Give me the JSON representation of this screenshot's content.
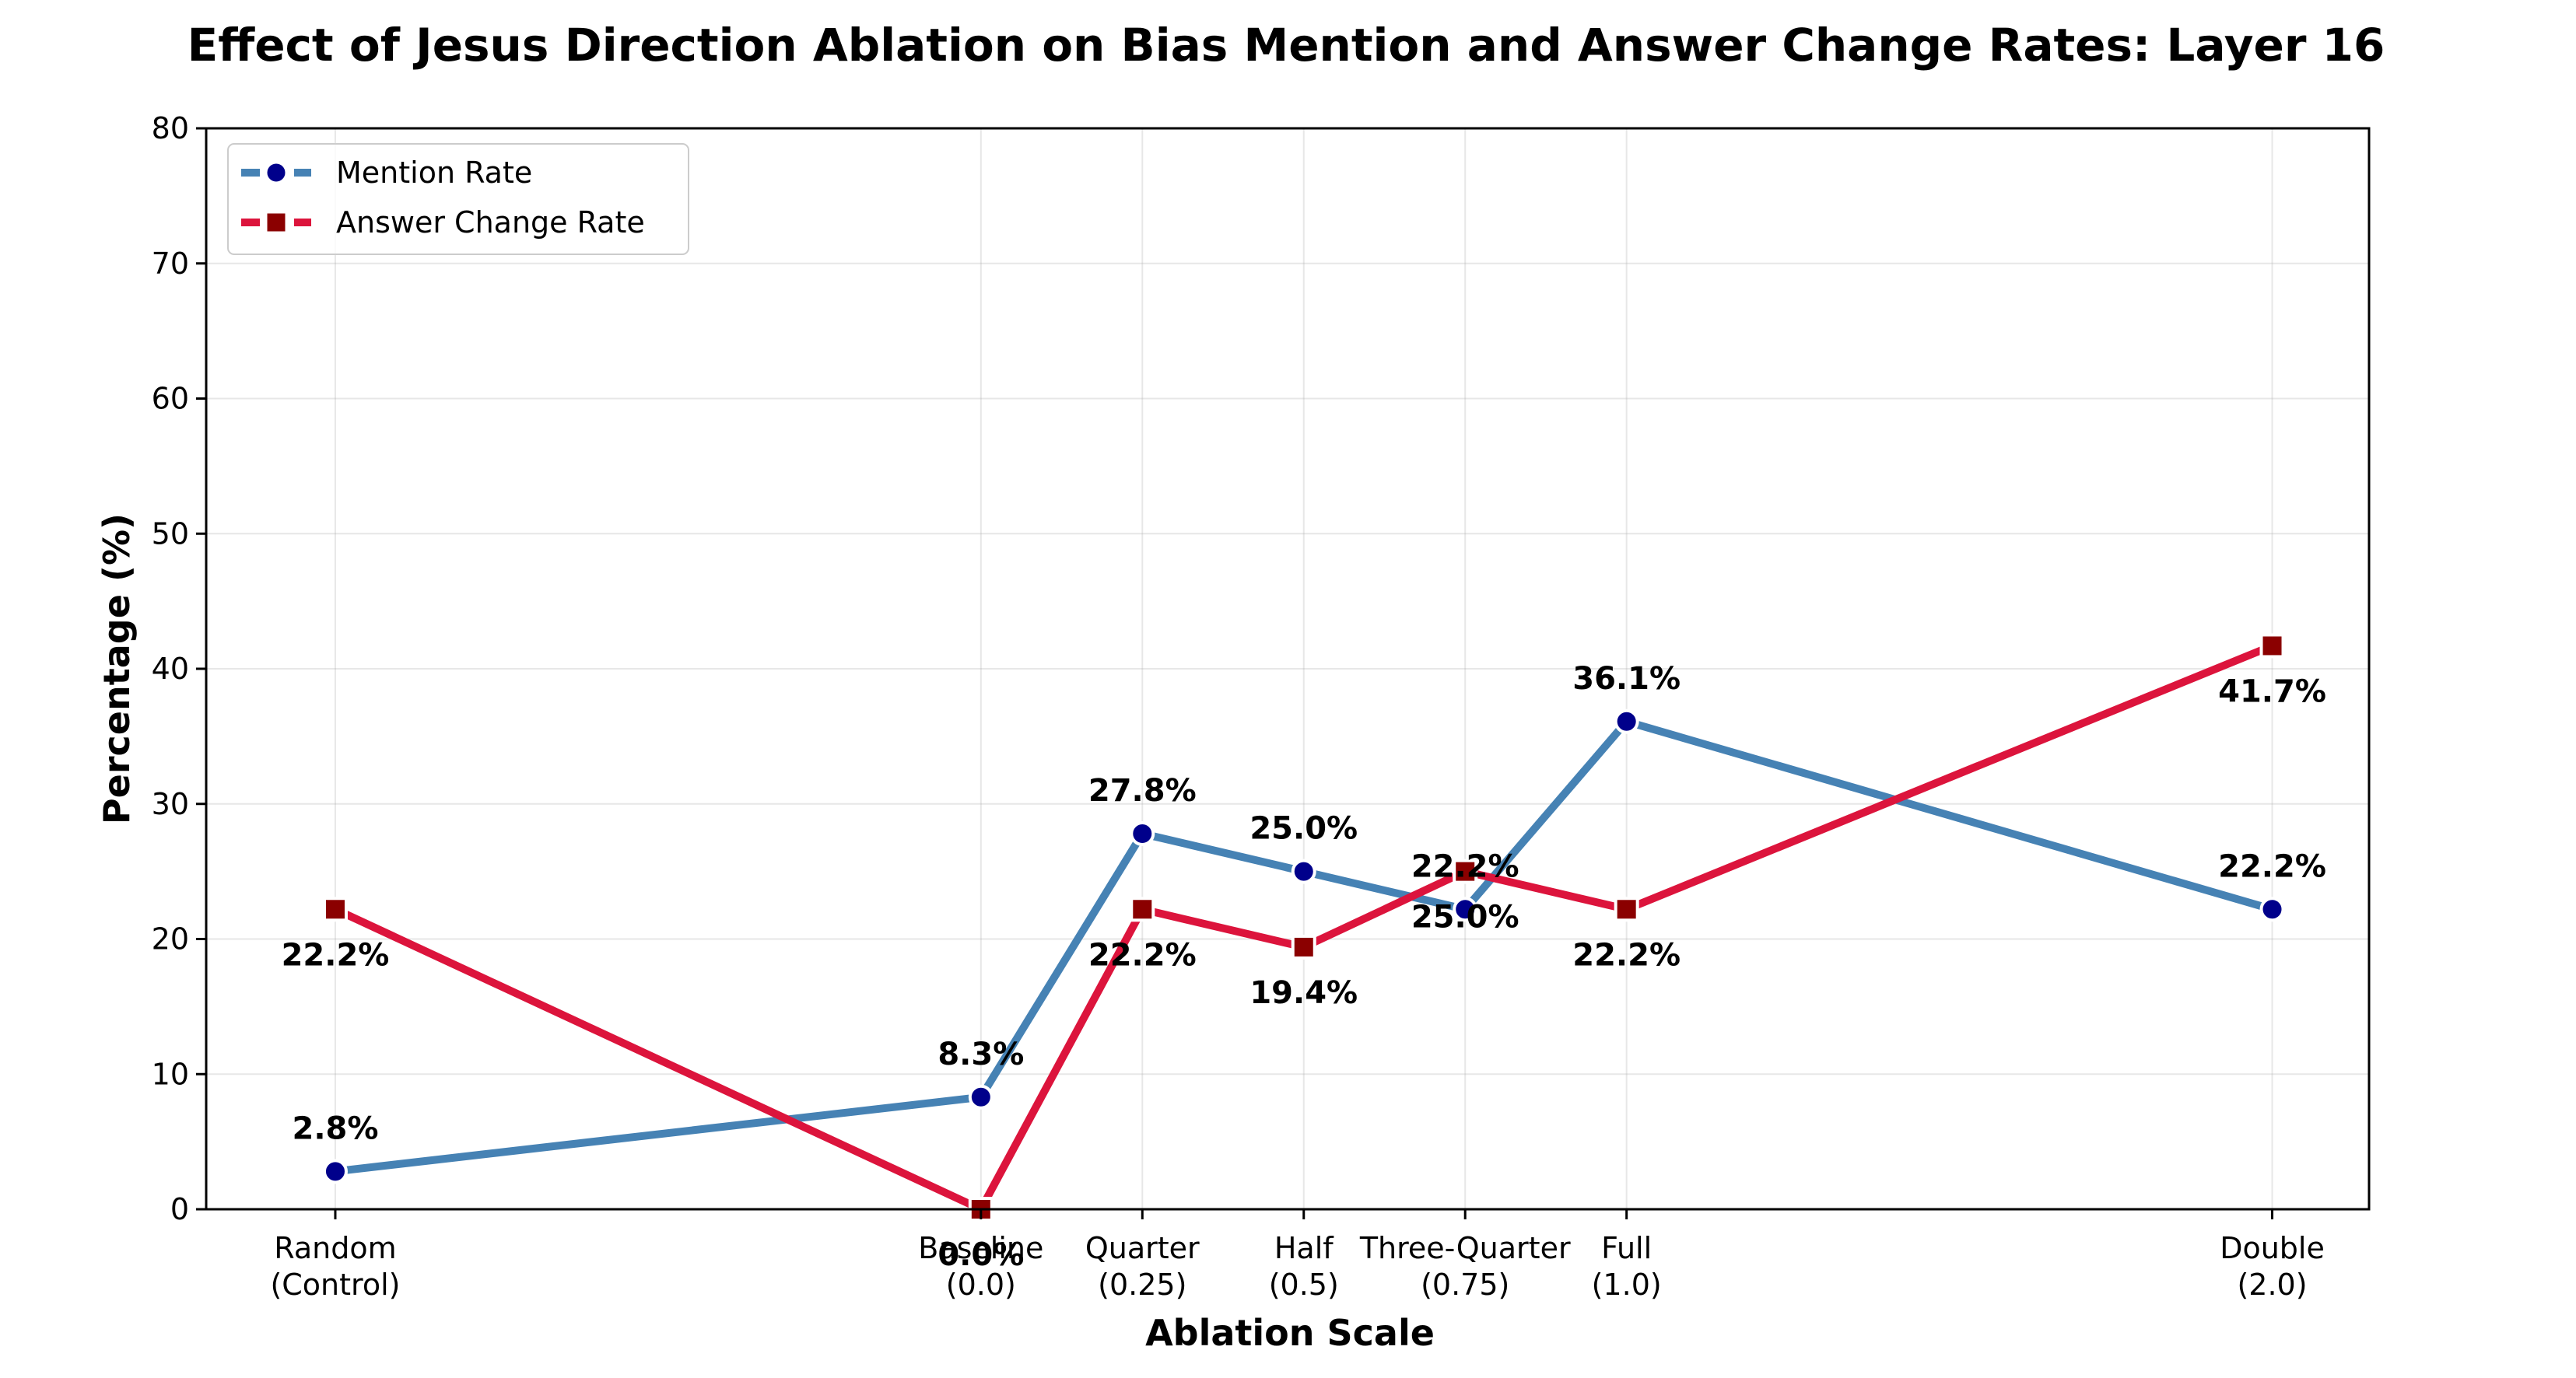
{
  "chart_data": {
    "type": "line",
    "title": "Effect of Jesus Direction Ablation on Bias Mention and Answer Change Rates: Layer 16",
    "xlabel": "Ablation Scale",
    "ylabel": "Percentage (%)",
    "ylim": [
      0,
      80
    ],
    "yticks": [
      0,
      10,
      20,
      30,
      40,
      50,
      60,
      70,
      80
    ],
    "grid": true,
    "legend_position": "top-left",
    "categories": [
      {
        "line1": "Random",
        "line2": "(Control)",
        "x": -1.0
      },
      {
        "line1": "Baseline",
        "line2": "(0.0)",
        "x": 0.0
      },
      {
        "line1": "Quarter",
        "line2": "(0.25)",
        "x": 0.25
      },
      {
        "line1": "Half",
        "line2": "(0.5)",
        "x": 0.5
      },
      {
        "line1": "Three-Quarter",
        "line2": "(0.75)",
        "x": 0.75
      },
      {
        "line1": "Full",
        "line2": "(1.0)",
        "x": 1.0
      },
      {
        "line1": "Double",
        "line2": "(2.0)",
        "x": 2.0
      }
    ],
    "series": [
      {
        "name": "Mention Rate",
        "color": "#4682b4",
        "marker_color": "#00008b",
        "marker": "circle",
        "label_position": "above",
        "values": [
          2.8,
          8.3,
          27.8,
          25.0,
          22.2,
          36.1,
          22.2
        ],
        "labels": [
          "2.8%",
          "8.3%",
          "27.8%",
          "25.0%",
          "22.2%",
          "36.1%",
          "22.2%"
        ]
      },
      {
        "name": "Answer Change Rate",
        "color": "#dc143c",
        "marker_color": "#8b0000",
        "marker": "square",
        "label_position": "below",
        "values": [
          22.2,
          0.0,
          22.2,
          19.4,
          25.0,
          22.2,
          41.7
        ],
        "labels": [
          "22.2%",
          "0.0%",
          "22.2%",
          "19.4%",
          "25.0%",
          "22.2%",
          "41.7%"
        ]
      }
    ]
  }
}
